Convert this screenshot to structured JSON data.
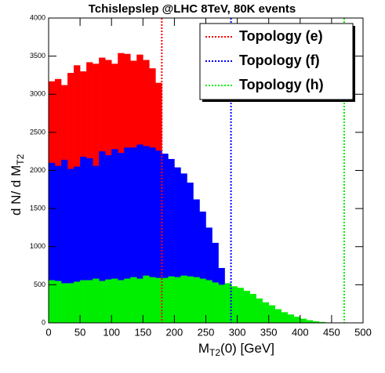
{
  "chart_data": {
    "type": "histogram",
    "title": "Tchislepslep @LHC 8TeV, 80K events",
    "x_label": {
      "main": "M",
      "sub": "T2",
      "rest": "(0) [GeV]"
    },
    "y_label": {
      "main": "d N/ d M",
      "sub": "T2"
    },
    "bins": [
      0,
      10,
      20,
      30,
      40,
      50,
      60,
      70,
      80,
      90,
      100,
      110,
      120,
      130,
      140,
      150,
      160,
      170,
      180,
      190,
      200,
      210,
      220,
      230,
      240,
      250,
      260,
      270,
      280,
      290,
      300,
      310,
      320,
      330,
      340,
      350,
      360,
      370,
      380,
      390,
      400,
      410,
      420,
      430,
      440,
      450,
      460,
      470,
      480,
      490,
      500
    ],
    "series": [
      {
        "name": "Topology (e)",
        "color": "#ff0000",
        "values": [
          3170,
          3200,
          3120,
          3280,
          3380,
          3300,
          3420,
          3400,
          3480,
          3450,
          3400,
          3540,
          3530,
          3440,
          3520,
          3450,
          3340,
          3150,
          0,
          0,
          0,
          0,
          0,
          0,
          0,
          0,
          0,
          0,
          0,
          0,
          0,
          0,
          0,
          0,
          0,
          0,
          0,
          0,
          0,
          0,
          0,
          0,
          0,
          0,
          0,
          0,
          0,
          0,
          0,
          0
        ]
      },
      {
        "name": "Topology (f)",
        "color": "#0000ff",
        "values": [
          2100,
          2060,
          2140,
          2020,
          2050,
          2180,
          2160,
          2060,
          2250,
          2200,
          2280,
          2230,
          2300,
          2300,
          2340,
          2320,
          2300,
          2260,
          2220,
          2150,
          2040,
          1960,
          1840,
          1620,
          1460,
          1250,
          1050,
          720,
          520,
          0,
          0,
          0,
          0,
          0,
          0,
          0,
          0,
          0,
          0,
          0,
          0,
          0,
          0,
          0,
          0,
          0,
          0,
          0,
          0,
          0
        ]
      },
      {
        "name": "Topology (h)",
        "color": "#00ee00",
        "values": [
          560,
          550,
          520,
          520,
          540,
          560,
          560,
          580,
          550,
          570,
          580,
          560,
          580,
          600,
          580,
          620,
          600,
          590,
          590,
          610,
          600,
          620,
          610,
          600,
          580,
          560,
          530,
          500,
          520,
          480,
          460,
          420,
          380,
          320,
          270,
          230,
          180,
          140,
          110,
          80,
          55,
          35,
          20,
          12,
          6,
          3,
          1,
          0,
          0,
          0
        ]
      }
    ],
    "endpoints": [
      {
        "x": 180,
        "color": "#ff0000"
      },
      {
        "x": 290,
        "color": "#0000ff"
      },
      {
        "x": 470,
        "color": "#00ee00"
      }
    ],
    "xlim": [
      0,
      500
    ],
    "xticks": [
      0,
      50,
      100,
      150,
      200,
      250,
      300,
      350,
      400,
      450,
      500
    ],
    "ylim": [
      0,
      4000
    ],
    "yticks": [
      0,
      500,
      1000,
      1500,
      2000,
      2500,
      3000,
      3500,
      4000
    ],
    "legend": "upper right"
  }
}
